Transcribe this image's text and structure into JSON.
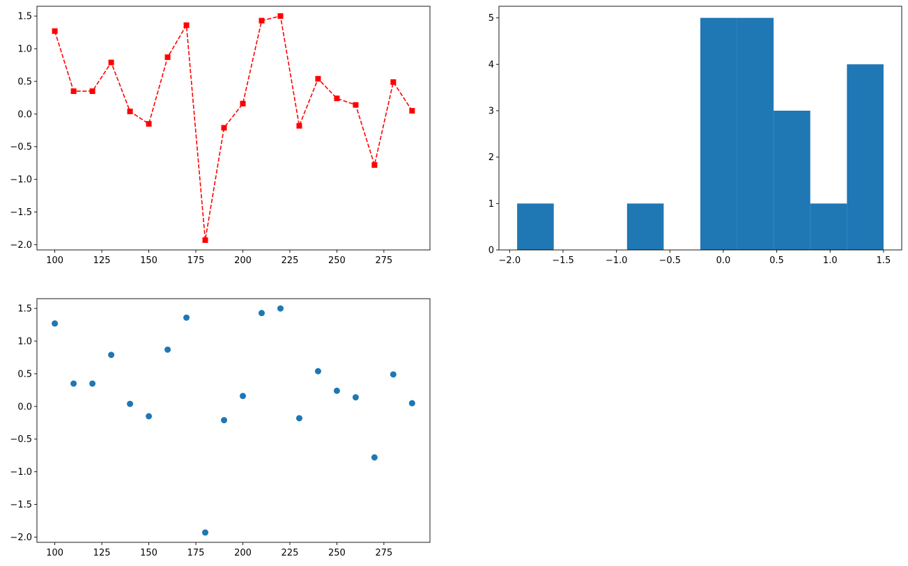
{
  "colors": {
    "line_series": "#ff0000",
    "bars": "#1f77b4",
    "scatter_points": "#1f77b4",
    "axes": "#000000",
    "background": "#ffffff"
  },
  "chart_data": [
    {
      "type": "line",
      "line_style": "dashed",
      "marker": "square",
      "grid": false,
      "x": [
        100,
        110,
        120,
        130,
        140,
        150,
        160,
        170,
        180,
        190,
        200,
        210,
        220,
        230,
        240,
        250,
        260,
        270,
        280,
        290
      ],
      "y": [
        1.27,
        0.35,
        0.35,
        0.79,
        0.04,
        -0.15,
        0.87,
        1.36,
        -1.93,
        -0.21,
        0.16,
        1.43,
        1.5,
        -0.18,
        0.54,
        0.24,
        0.14,
        -0.78,
        0.49,
        0.05
      ],
      "xlim": [
        90.5,
        299.5
      ],
      "ylim": [
        -2.08,
        1.65
      ],
      "xticks": [
        100,
        125,
        150,
        175,
        200,
        225,
        250,
        275
      ],
      "xtick_labels": [
        "100",
        "125",
        "150",
        "175",
        "200",
        "225",
        "250",
        "275"
      ],
      "yticks": [
        -2.0,
        -1.5,
        -1.0,
        -0.5,
        0.0,
        0.5,
        1.0,
        1.5
      ],
      "ytick_labels": [
        "−2.0",
        "−1.5",
        "−1.0",
        "−0.5",
        "0.0",
        "0.5",
        "1.0",
        "1.5"
      ]
    },
    {
      "type": "bar",
      "subtype": "histogram",
      "grid": false,
      "bin_edges": [
        -1.93,
        -1.587,
        -1.244,
        -0.901,
        -0.558,
        -0.215,
        0.128,
        0.471,
        0.814,
        1.157,
        1.5
      ],
      "values": [
        1,
        0,
        0,
        1,
        0,
        5,
        5,
        3,
        1,
        4
      ],
      "xlim": [
        -2.1,
        1.67
      ],
      "ylim": [
        0,
        5.25
      ],
      "xticks": [
        -2.0,
        -1.5,
        -1.0,
        -0.5,
        0.0,
        0.5,
        1.0,
        1.5
      ],
      "xtick_labels": [
        "−2.0",
        "−1.5",
        "−1.0",
        "−0.5",
        "0.0",
        "0.5",
        "1.0",
        "1.5"
      ],
      "yticks": [
        0,
        1,
        2,
        3,
        4,
        5
      ],
      "ytick_labels": [
        "0",
        "1",
        "2",
        "3",
        "4",
        "5"
      ]
    },
    {
      "type": "scatter",
      "marker": "circle",
      "grid": false,
      "x": [
        100,
        110,
        120,
        130,
        140,
        150,
        160,
        170,
        180,
        190,
        200,
        210,
        220,
        230,
        240,
        250,
        260,
        270,
        280,
        290
      ],
      "y": [
        1.27,
        0.35,
        0.35,
        0.79,
        0.04,
        -0.15,
        0.87,
        1.36,
        -1.93,
        -0.21,
        0.16,
        1.43,
        1.5,
        -0.18,
        0.54,
        0.24,
        0.14,
        -0.78,
        0.49,
        0.05
      ],
      "xlim": [
        90.5,
        299.5
      ],
      "ylim": [
        -2.08,
        1.65
      ],
      "xticks": [
        100,
        125,
        150,
        175,
        200,
        225,
        250,
        275
      ],
      "xtick_labels": [
        "100",
        "125",
        "150",
        "175",
        "200",
        "225",
        "250",
        "275"
      ],
      "yticks": [
        -2.0,
        -1.5,
        -1.0,
        -0.5,
        0.0,
        0.5,
        1.0,
        1.5
      ],
      "ytick_labels": [
        "−2.0",
        "−1.5",
        "−1.0",
        "−0.5",
        "0.0",
        "0.5",
        "1.0",
        "1.5"
      ]
    }
  ]
}
